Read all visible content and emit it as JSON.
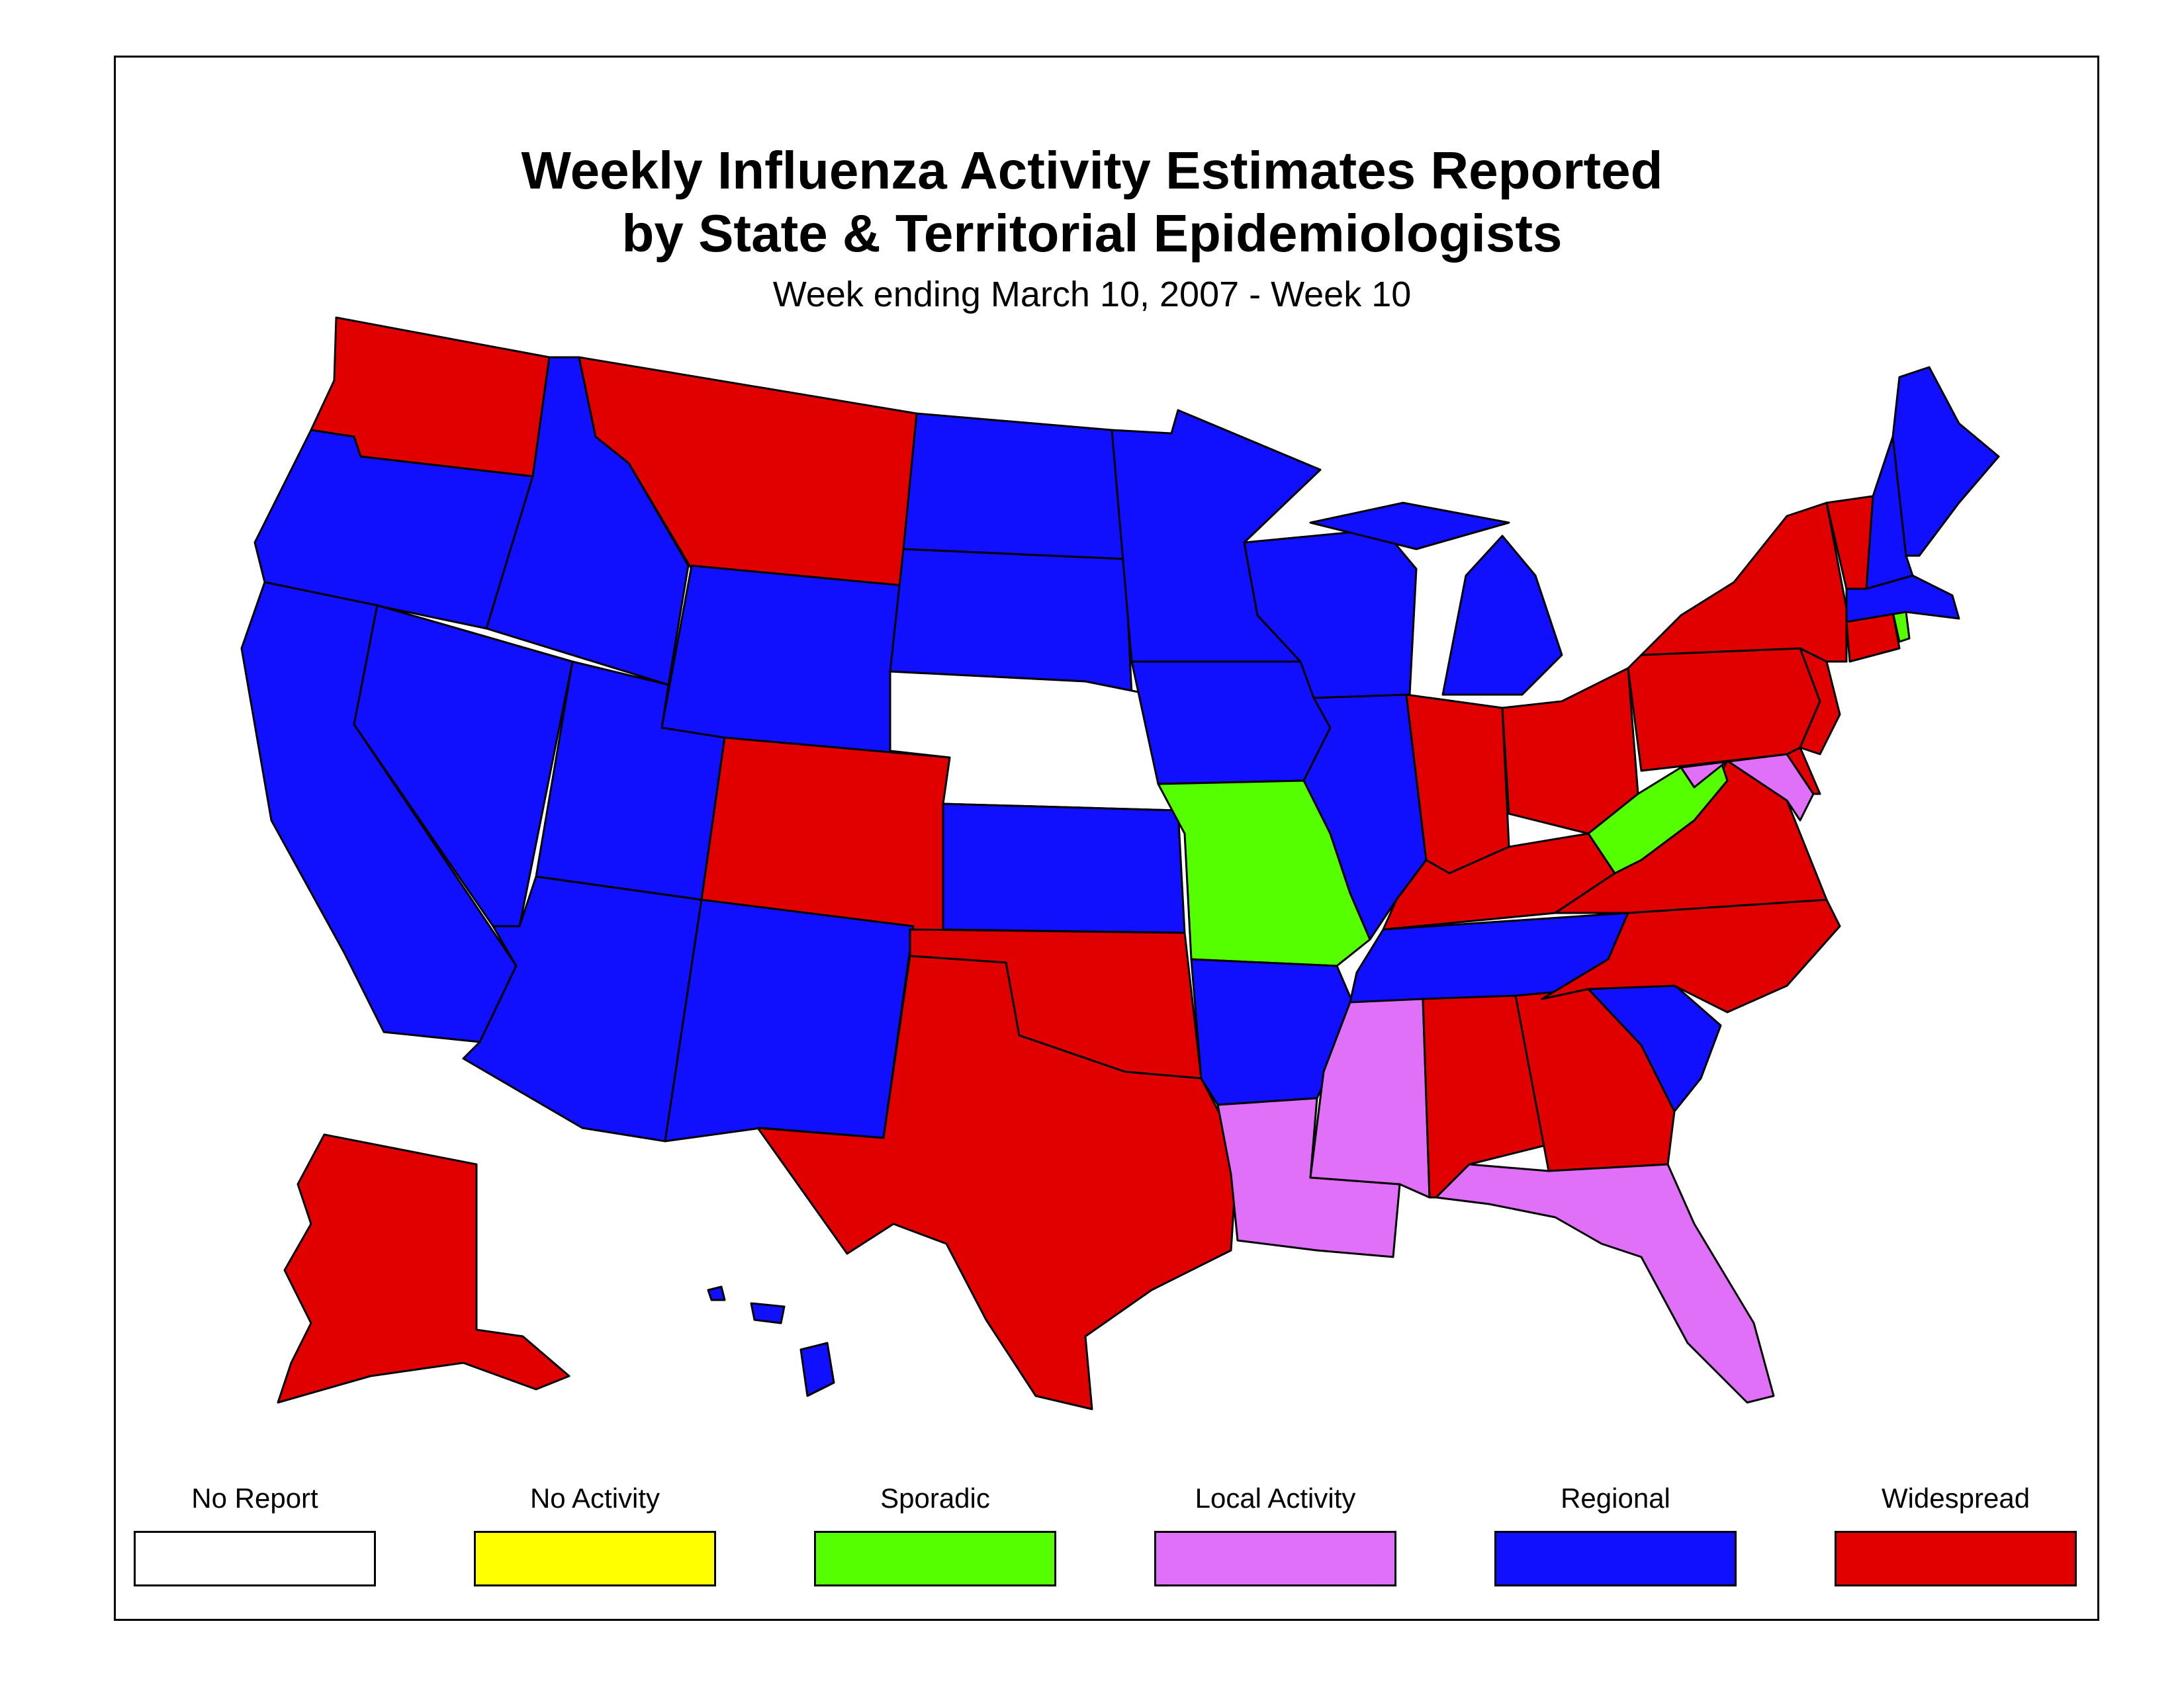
{
  "title_line1": "Weekly Influenza Activity Estimates Reported",
  "title_line2": "by State & Territorial Epidemiologists",
  "subtitle": "Week ending March 10, 2007 - Week 10",
  "legend": [
    {
      "label": "No Report",
      "color": "#ffffff"
    },
    {
      "label": "No Activity",
      "color": "#ffff00"
    },
    {
      "label": "Sporadic",
      "color": "#55ff00"
    },
    {
      "label": "Local Activity",
      "color": "#e070f8"
    },
    {
      "label": "Regional",
      "color": "#1010ff"
    },
    {
      "label": "Widespread",
      "color": "#e00000"
    }
  ],
  "states": {
    "WA": "Widespread",
    "OR": "Regional",
    "CA": "Regional",
    "NV": "Regional",
    "ID": "Regional",
    "MT": "Widespread",
    "WY": "Regional",
    "UT": "Regional",
    "AZ": "Regional",
    "CO": "Widespread",
    "NM": "Regional",
    "ND": "Regional",
    "SD": "Regional",
    "NE": "No Report",
    "KS": "Regional",
    "OK": "Widespread",
    "TX": "Widespread",
    "MN": "Regional",
    "IA": "Regional",
    "MO": "Sporadic",
    "AR": "Regional",
    "LA": "Local Activity",
    "WI": "Regional",
    "IL": "Regional",
    "MI": "Regional",
    "IN": "Widespread",
    "OH": "Widespread",
    "KY": "Widespread",
    "TN": "Regional",
    "MS": "Local Activity",
    "AL": "Widespread",
    "GA": "Widespread",
    "FL": "Local Activity",
    "SC": "Regional",
    "NC": "Widespread",
    "VA": "Widespread",
    "WV": "Sporadic",
    "MD": "Local Activity",
    "DE": "Widespread",
    "PA": "Widespread",
    "NJ": "Widespread",
    "NY": "Widespread",
    "CT": "Widespread",
    "RI": "Sporadic",
    "MA": "Regional",
    "VT": "Widespread",
    "NH": "Regional",
    "ME": "Regional",
    "AK": "Widespread",
    "HI": "Regional"
  }
}
